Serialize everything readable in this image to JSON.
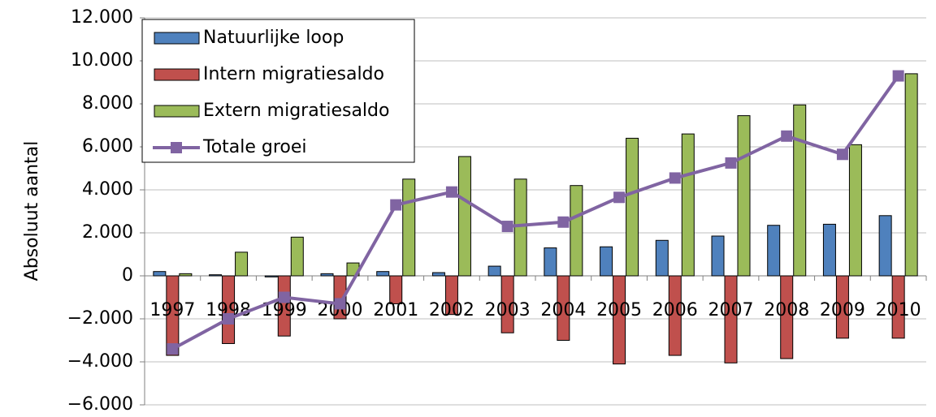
{
  "chart_data": {
    "type": "bar",
    "y_label": "Absoluut aantal",
    "categories": [
      "1997",
      "1998",
      "1999",
      "2000",
      "2001",
      "2002",
      "2003",
      "2004",
      "2005",
      "2006",
      "2007",
      "2008",
      "2009",
      "2010"
    ],
    "series": [
      {
        "name": "Natuurlijke loop",
        "color": "#4f81bd",
        "values": [
          200,
          50,
          -50,
          100,
          200,
          150,
          450,
          1300,
          1350,
          1650,
          1850,
          2350,
          2400,
          2800
        ]
      },
      {
        "name": "Intern migratiesaldo",
        "color": "#c0504d",
        "values": [
          -3700,
          -3150,
          -2800,
          -2000,
          -1300,
          -1800,
          -2650,
          -3000,
          -4100,
          -3700,
          -4050,
          -3850,
          -2900,
          -2900
        ]
      },
      {
        "name": "Extern migratiesaldo",
        "color": "#9bbb59",
        "values": [
          100,
          1100,
          1800,
          600,
          4500,
          5550,
          4500,
          4200,
          6400,
          6600,
          7450,
          7950,
          6100,
          9400
        ]
      },
      {
        "name": "Totale groei",
        "color": "#8064a2",
        "type": "line",
        "values": [
          -3400,
          -2000,
          -1000,
          -1300,
          3300,
          3900,
          2300,
          2500,
          3650,
          4550,
          5250,
          6500,
          5650,
          9300
        ]
      }
    ],
    "ylim": [
      -6000,
      12000
    ],
    "yticks": [
      {
        "value": -6000,
        "label": "−6.000"
      },
      {
        "value": -4000,
        "label": "−4.000"
      },
      {
        "value": -2000,
        "label": "−2.000"
      },
      0,
      {
        "value": 2000,
        "label": "2.000"
      },
      {
        "value": 4000,
        "label": "4.000"
      },
      {
        "value": 6000,
        "label": "6.000"
      },
      {
        "value": 8000,
        "label": "8.000"
      },
      {
        "value": 10000,
        "label": "10.000"
      },
      {
        "value": 12000,
        "label": "12.000"
      }
    ],
    "grid": true,
    "legend": "upper left"
  }
}
